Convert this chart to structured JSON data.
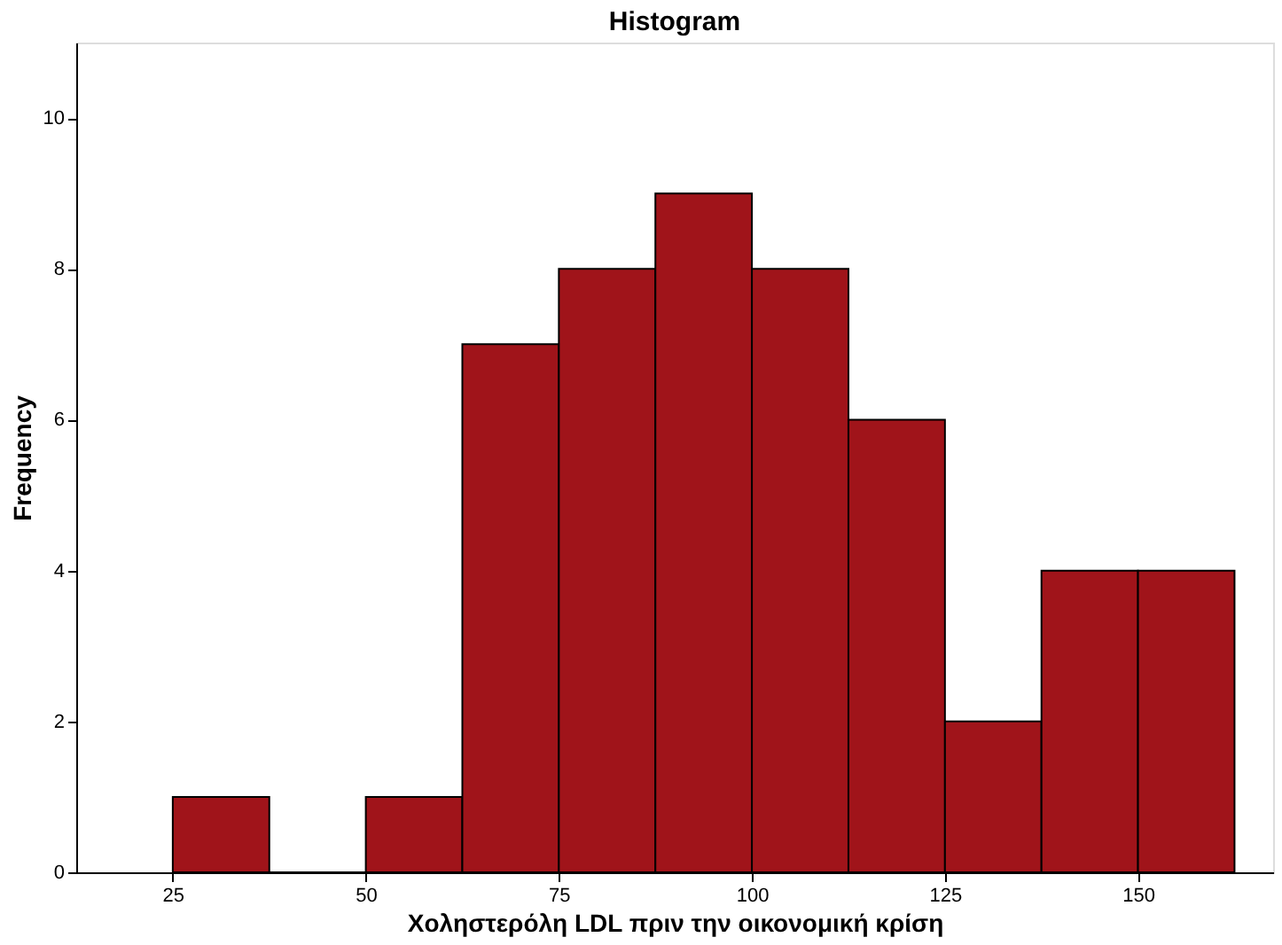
{
  "chart_data": {
    "type": "histogram",
    "title": "Histogram",
    "xlabel": "Χοληστερόλη LDL πριν την οικονομική κρίση",
    "ylabel": "Frequency",
    "bins": [
      25,
      37.5,
      50,
      62.5,
      75,
      87.5,
      100,
      112.5,
      125,
      137.5,
      150,
      162.5
    ],
    "values": [
      1,
      0,
      1,
      7,
      8,
      9,
      8,
      6,
      2,
      4,
      4
    ],
    "color": "#a0141a",
    "xlim": [
      12.5,
      167.5
    ],
    "xticks": [
      25,
      50,
      75,
      100,
      125,
      150
    ],
    "ylim": [
      0,
      11
    ],
    "yticks": [
      0,
      2,
      4,
      6,
      8,
      10
    ],
    "grid": false
  }
}
